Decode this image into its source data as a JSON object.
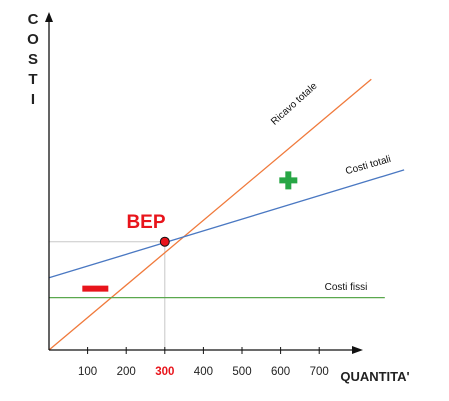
{
  "chart_data": {
    "type": "line",
    "ylabel": "COSTI",
    "xlabel": "QUANTITA'",
    "x_ticks": [
      "100",
      "200",
      "300",
      "400",
      "500",
      "600",
      "700"
    ],
    "highlight_tick": "300",
    "xlim": [
      0,
      900
    ],
    "ylim": [
      0,
      900
    ],
    "grid": false,
    "series": [
      {
        "name": "Ricavo totale",
        "color": "#f07a3c",
        "points": [
          [
            0,
            0
          ],
          [
            835,
            750
          ]
        ]
      },
      {
        "name": "Costi totali",
        "color": "#4a78c2",
        "points": [
          [
            0,
            200
          ],
          [
            1000,
            525
          ]
        ]
      },
      {
        "name": "Costi fissi",
        "color": "#5aa84e",
        "points": [
          [
            0,
            145
          ],
          [
            1000,
            145
          ]
        ]
      }
    ],
    "bep": {
      "label": "BEP",
      "x": 300,
      "y": 300,
      "color": "#e8141b"
    },
    "markers": [
      {
        "symbol": "minus",
        "color": "#e8141b",
        "x": 120,
        "y": 170
      },
      {
        "symbol": "plus",
        "color": "#27a645",
        "x": 620,
        "y": 470
      }
    ]
  }
}
